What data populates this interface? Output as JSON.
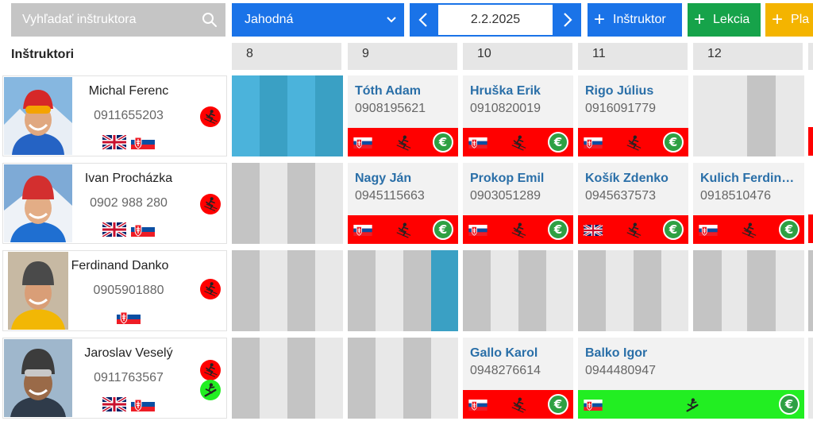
{
  "search": {
    "placeholder": "Vyhľadať inštruktora"
  },
  "resort": {
    "selected": "Jahodná"
  },
  "date": {
    "value": "2.2.2025"
  },
  "actions": {
    "add_instructor": "Inštruktor",
    "add_lesson": "Lekcia",
    "add_third": "Pla"
  },
  "instructors_heading": "Inštruktori",
  "hours": [
    "8",
    "9",
    "10",
    "11",
    "12"
  ],
  "instructors": [
    {
      "name": "Michal Ferenc",
      "phone": "0911655203",
      "languages": [
        "gb",
        "sk"
      ],
      "sports": [
        "ski"
      ]
    },
    {
      "name": "Ivan Procházka",
      "phone": "0902 988 280",
      "languages": [
        "gb",
        "sk"
      ],
      "sports": [
        "ski"
      ]
    },
    {
      "name": "Ferdinand Danko",
      "phone": "0905901880",
      "languages": [
        "sk"
      ],
      "sports": [
        "ski"
      ]
    },
    {
      "name": "Jaroslav Veselý",
      "phone": "0911763567",
      "languages": [
        "gb",
        "sk"
      ],
      "sports": [
        "ski",
        "snowboard"
      ]
    }
  ],
  "lessons": [
    {
      "row": 0,
      "hour": "9",
      "client": "Tóth Adam",
      "phone": "0908195621",
      "language": "sk",
      "status": "red"
    },
    {
      "row": 0,
      "hour": "10",
      "client": "Hruška Erik",
      "phone": "0910820019",
      "language": "sk",
      "status": "red"
    },
    {
      "row": 0,
      "hour": "11",
      "client": "Rigo Július",
      "phone": "0916091779",
      "language": "sk",
      "status": "red"
    },
    {
      "row": 1,
      "hour": "9",
      "client": "Nagy Ján",
      "phone": "0945115663",
      "language": "sk",
      "status": "red"
    },
    {
      "row": 1,
      "hour": "10",
      "client": "Prokop Emil",
      "phone": "0903051289",
      "language": "sk",
      "status": "red"
    },
    {
      "row": 1,
      "hour": "11",
      "client": "Košík Zdenko",
      "phone": "0945637573",
      "language": "gb",
      "status": "red"
    },
    {
      "row": 1,
      "hour": "12",
      "client": "Kulich Ferdinand",
      "phone": "0918510476",
      "language": "sk",
      "status": "red"
    },
    {
      "row": 3,
      "hour": "10",
      "client": "Gallo Karol",
      "phone": "0948276614",
      "language": "sk",
      "status": "red"
    },
    {
      "row": 3,
      "hour": "11",
      "client": "Balko Igor",
      "phone": "0944480947",
      "language": "sk",
      "status": "green"
    }
  ],
  "icons": {
    "search": "search-icon",
    "dropdown": "chevron-down-icon",
    "prev": "chevron-left-icon",
    "next": "chevron-right-icon",
    "plus": "plus-icon",
    "ski": "skier-icon",
    "snowboard": "snowboarder-icon",
    "payment": "euro-icon"
  },
  "colors": {
    "primary": "#1a73e8",
    "success": "#16a34a",
    "warning": "#f4b400",
    "unpaid": "#ff0000",
    "paid": "#22ee22",
    "booked": "#4bb3db",
    "client_name": "#2a6fa8"
  }
}
